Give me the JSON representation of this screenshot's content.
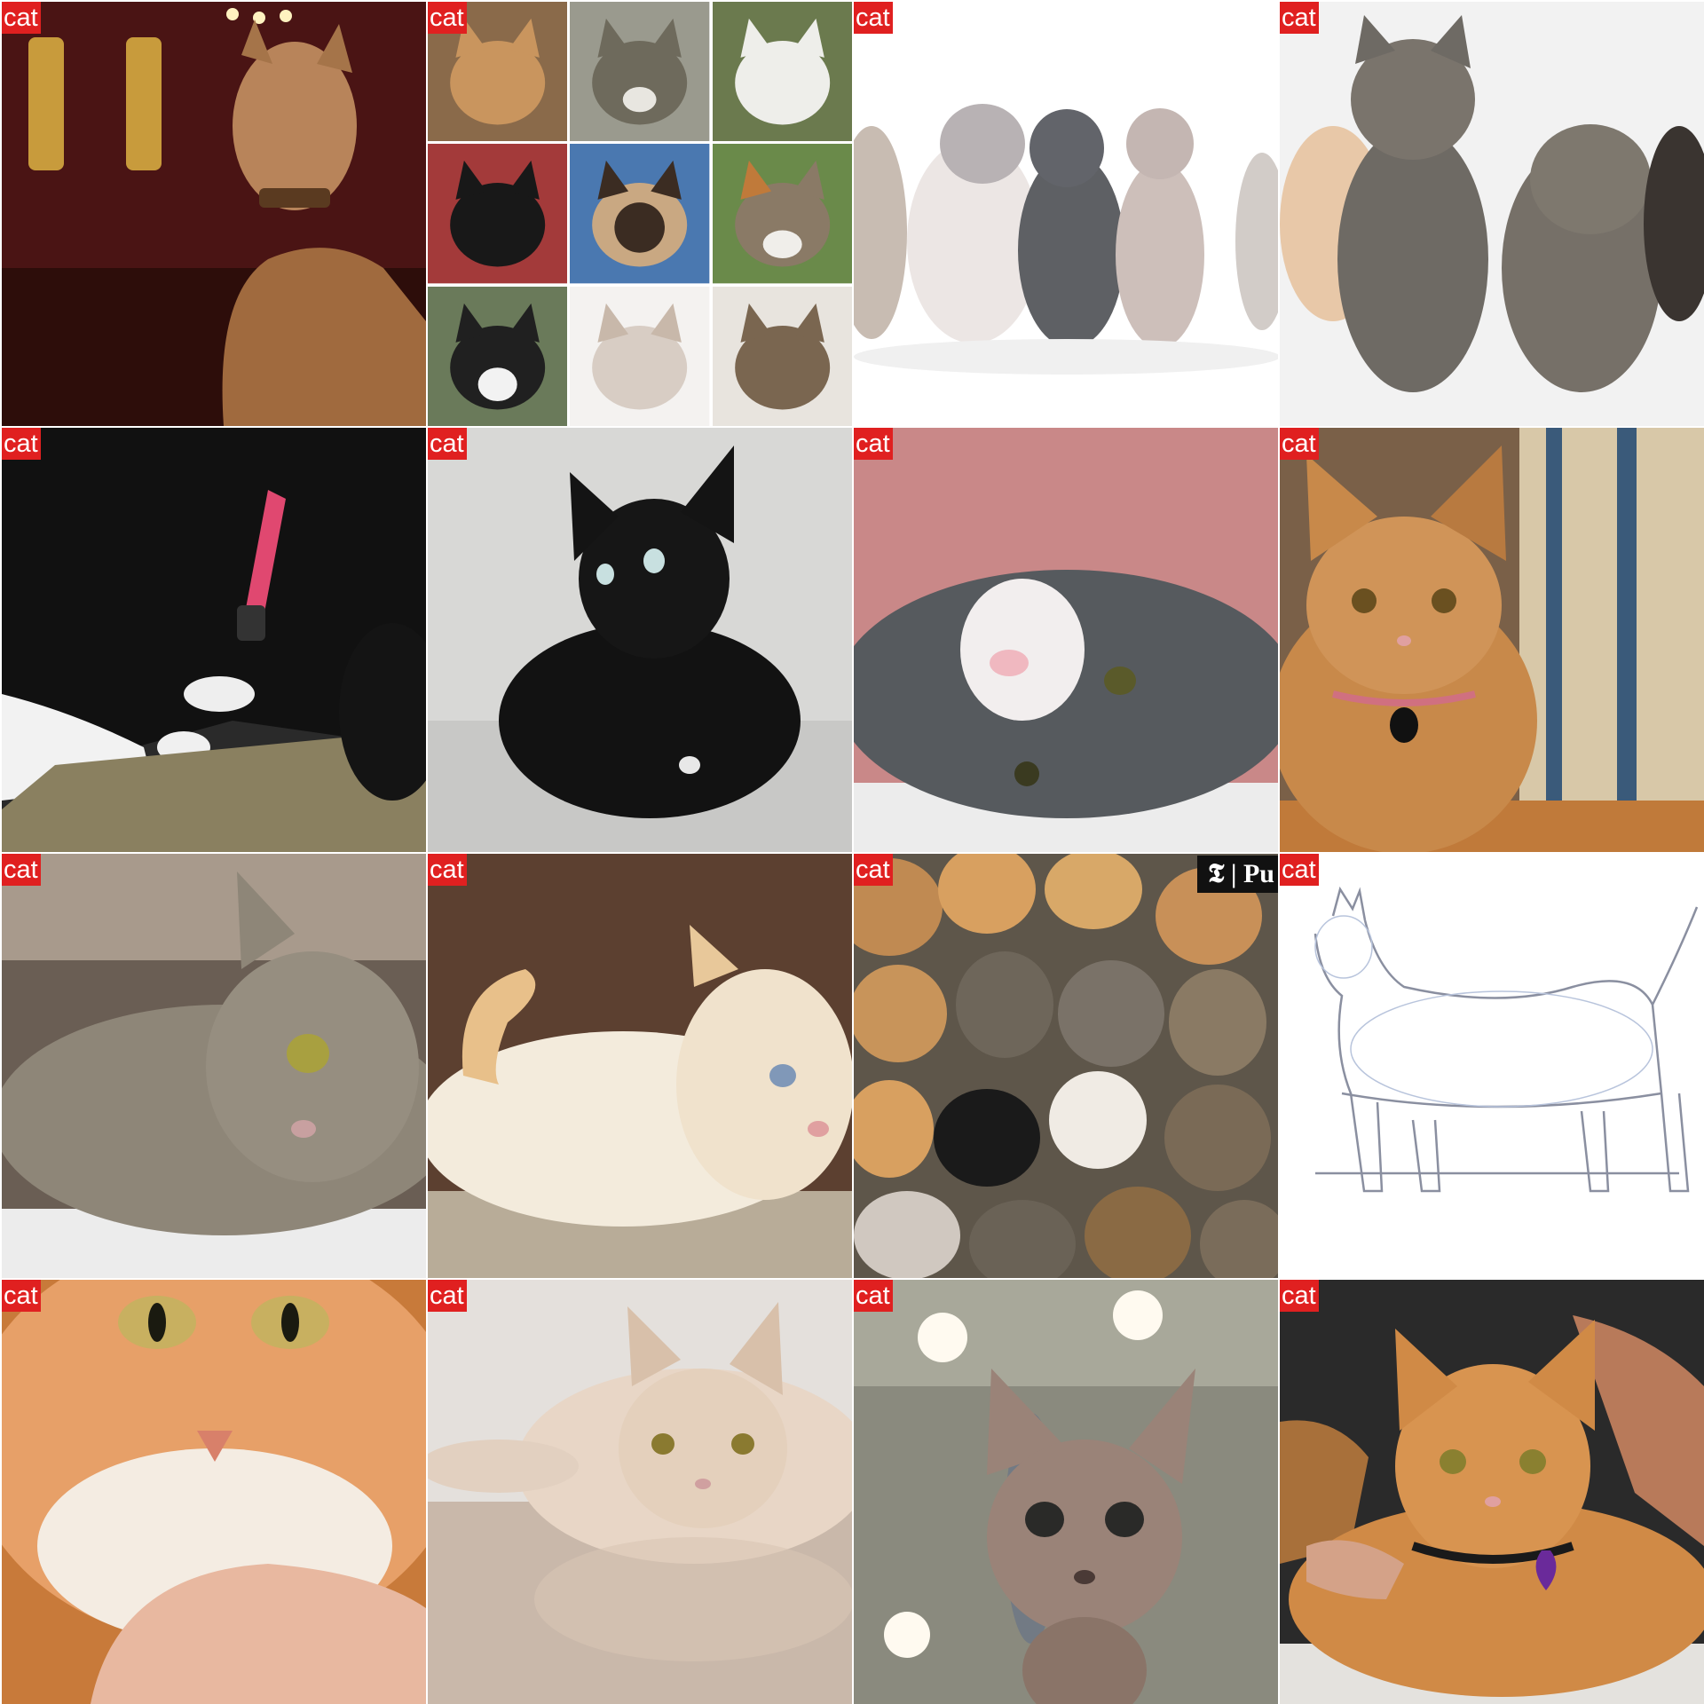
{
  "label": "cat",
  "tiles": [
    {
      "id": 1,
      "subject": "woman in cat costume with tabby makeup and spotted collar",
      "bg": "#4a1414",
      "fg": "#b8845a"
    },
    {
      "id": 2,
      "subject": "3x3 collage of cat faces",
      "bg": "#ffffff",
      "fg": "#888888",
      "collage": [
        "#c9955e",
        "#6e6a5c",
        "#eeeeea",
        "#181818",
        "#3b2c22",
        "#8a7a66",
        "#202020",
        "#d8cdc4",
        "#7a6650"
      ]
    },
    {
      "id": 3,
      "subject": "row of four kittens of different breeds on white background",
      "bg": "#ffffff",
      "fg": "#8a8a8a"
    },
    {
      "id": 4,
      "subject": "three tabby kittens standing on white background",
      "bg": "#f2f2f2",
      "fg": "#6e6a64"
    },
    {
      "id": 5,
      "subject": "black and white cat with heart-patterned collar sniffing a scratcher",
      "bg": "#2a2a2a",
      "fg": "#111111"
    },
    {
      "id": 6,
      "subject": "black cat lying on a light bed",
      "bg": "#d8d8d6",
      "fg": "#121212"
    },
    {
      "id": 7,
      "subject": "grey and white cat lying on its side",
      "bg": "#c98888",
      "fg": "#565a5e"
    },
    {
      "id": 8,
      "subject": "calico cat with pink collar and black tag",
      "bg": "#7a6048",
      "fg": "#c8894a"
    },
    {
      "id": 9,
      "subject": "grey tabby cat lying on a white blanket",
      "bg": "#6a5e54",
      "fg": "#8e8678"
    },
    {
      "id": 10,
      "subject": "cream cat with blue eyes lying on wooden floor",
      "bg": "#5c4030",
      "fg": "#f3ebdc"
    },
    {
      "id": 11,
      "subject": "crowd of many cats",
      "bg": "#5e564a",
      "fg": "#c08a52",
      "logo": "𝕿 | Pu"
    },
    {
      "id": 12,
      "subject": "pencil sketch of a standing cat",
      "bg": "#ffffff",
      "fg": "#8a8fa0"
    },
    {
      "id": 13,
      "subject": "close-up of orange tabby cat held by a hand",
      "bg": "#c87a3a",
      "fg": "#e7a068"
    },
    {
      "id": 14,
      "subject": "cream long-haired cat lying on a glossy floor",
      "bg": "#c9b8aa",
      "fg": "#e8d6c6"
    },
    {
      "id": 15,
      "subject": "hairless sphynx cat with large ears",
      "bg": "#8a8a7e",
      "fg": "#9a8378"
    },
    {
      "id": 16,
      "subject": "orange tabby cat with purple heart tag lying on carpet",
      "bg": "#2a2a2a",
      "fg": "#d08a46"
    }
  ]
}
